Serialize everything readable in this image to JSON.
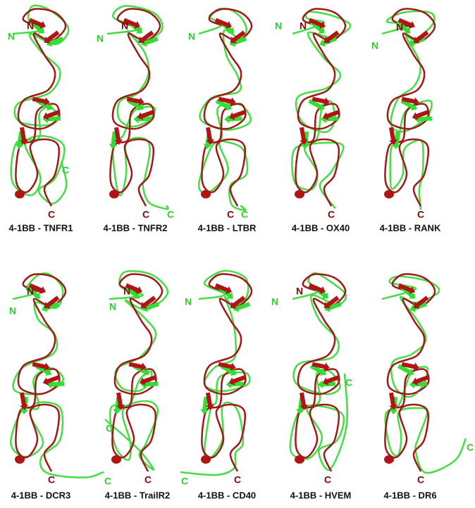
{
  "panels": [
    {
      "caption": "4-1BB - TNFR1",
      "labels": [
        {
          "text": "N",
          "color": "#7a0a0a"
        },
        {
          "text": "N",
          "color": "#33cc33"
        },
        {
          "text": "C",
          "color": "#33cc33"
        },
        {
          "text": "C",
          "color": "#7a0a0a"
        }
      ]
    },
    {
      "caption": "4-1BB - TNFR2",
      "labels": [
        {
          "text": "N",
          "color": "#7a0a0a"
        },
        {
          "text": "N",
          "color": "#33cc33"
        },
        {
          "text": "C",
          "color": "#7a0a0a"
        },
        {
          "text": "C",
          "color": "#33cc33"
        }
      ]
    },
    {
      "caption": "4-1BB - LTBR",
      "labels": [
        {
          "text": "N",
          "color": "#33cc33"
        },
        {
          "text": "C",
          "color": "#7a0a0a"
        },
        {
          "text": "C",
          "color": "#33cc33"
        }
      ]
    },
    {
      "caption": "4-1BB - OX40",
      "labels": [
        {
          "text": "N",
          "color": "#33cc33"
        },
        {
          "text": "N",
          "color": "#7a0a0a"
        },
        {
          "text": "C",
          "color": "#7a0a0a"
        }
      ]
    },
    {
      "caption": "4-1BB - RANK",
      "labels": [
        {
          "text": "N",
          "color": "#33cc33"
        },
        {
          "text": "N",
          "color": "#7a0a0a"
        },
        {
          "text": "C",
          "color": "#7a0a0a"
        }
      ]
    },
    {
      "caption": "4-1BB - DCR3",
      "labels": [
        {
          "text": "N",
          "color": "#7a0a0a"
        },
        {
          "text": "N",
          "color": "#33cc33"
        },
        {
          "text": "C",
          "color": "#7a0a0a"
        },
        {
          "text": "C",
          "color": "#33cc33"
        }
      ]
    },
    {
      "caption": "4-1BB - TrailR2",
      "labels": [
        {
          "text": "N",
          "color": "#7a0a0a"
        },
        {
          "text": "N",
          "color": "#33cc33"
        },
        {
          "text": "C",
          "color": "#33cc33"
        },
        {
          "text": "C",
          "color": "#7a0a0a"
        }
      ]
    },
    {
      "caption": "4-1BB - CD40",
      "labels": [
        {
          "text": "N",
          "color": "#33cc33"
        },
        {
          "text": "C",
          "color": "#33cc33"
        },
        {
          "text": "C",
          "color": "#7a0a0a"
        }
      ]
    },
    {
      "caption": "4-1BB - HVEM",
      "labels": [
        {
          "text": "N",
          "color": "#33cc33"
        },
        {
          "text": "N",
          "color": "#7a0a0a"
        },
        {
          "text": "C",
          "color": "#33cc33"
        },
        {
          "text": "C",
          "color": "#7a0a0a"
        }
      ]
    },
    {
      "caption": "4-1BB - DR6",
      "labels": [
        {
          "text": "C",
          "color": "#33cc33"
        },
        {
          "text": "C",
          "color": "#7a0a0a"
        }
      ]
    }
  ]
}
